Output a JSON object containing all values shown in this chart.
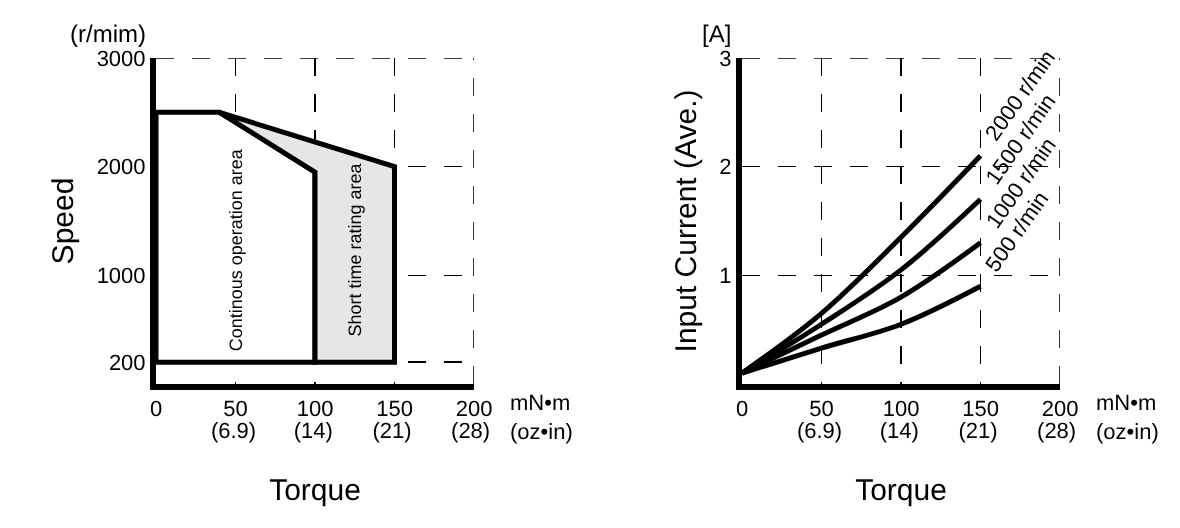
{
  "chart_data": [
    {
      "type": "area",
      "xlabel": "Torque",
      "ylabel": "Speed",
      "xlim": [
        0,
        200
      ],
      "ylim": [
        0,
        3000
      ],
      "xticks": [
        0,
        50,
        100,
        150,
        200
      ],
      "x2lim": [
        0,
        28.3
      ],
      "x2ticks": [
        {
          "value": 6.9,
          "label": "(6.9)"
        },
        {
          "value": 14,
          "label": "(14)"
        },
        {
          "value": 21,
          "label": "(21)"
        },
        {
          "value": 28,
          "label": "(28)"
        }
      ],
      "yticks": [
        200,
        1000,
        2000,
        3000
      ],
      "grid": true,
      "series": [
        {
          "x": [
            0,
            0,
            40,
            100,
            100,
            0
          ],
          "values": [
            200,
            2500,
            2500,
            1950,
            200,
            200
          ],
          "color": "#ffffff"
        },
        {
          "x": [
            40,
            150,
            150,
            100,
            100,
            40
          ],
          "values": [
            2500,
            2000,
            200,
            200,
            1950,
            2500
          ],
          "color": "#e6e6e6"
        }
      ],
      "annotations": [
        "(r/mim)",
        "mN•m\n(oz•in)",
        "Continous operation area",
        "Short time rating area"
      ]
    },
    {
      "type": "line",
      "xlabel": "Torque",
      "ylabel": "Input Current (Ave.)",
      "xlim": [
        0,
        200
      ],
      "ylim": [
        0,
        3
      ],
      "xticks": [
        0,
        50,
        100,
        150,
        200
      ],
      "x2lim": [
        0,
        28.3
      ],
      "x2ticks": [
        {
          "value": 6.9,
          "label": "(6.9)"
        },
        {
          "value": 14,
          "label": "(14)"
        },
        {
          "value": 21,
          "label": "(21)"
        },
        {
          "value": 28,
          "label": "(28)"
        }
      ],
      "yticks": [
        1,
        2,
        3
      ],
      "grid": true,
      "marker": "none",
      "series": [
        {
          "name": "2000 r/min",
          "color": "#000000",
          "x": [
            0,
            50,
            100,
            150
          ],
          "values": [
            0.1,
            0.65,
            1.35,
            2.1
          ]
        },
        {
          "name": "1500 r/min",
          "color": "#000000",
          "x": [
            0,
            50,
            100,
            150
          ],
          "values": [
            0.1,
            0.55,
            1.05,
            1.7
          ]
        },
        {
          "name": "1000 r/min",
          "color": "#000000",
          "x": [
            0,
            50,
            100,
            150
          ],
          "values": [
            0.1,
            0.45,
            0.8,
            1.3
          ]
        },
        {
          "name": "500 r/min",
          "color": "#000000",
          "x": [
            0,
            50,
            100,
            150
          ],
          "values": [
            0.1,
            0.33,
            0.55,
            0.9
          ]
        }
      ],
      "annotations": [
        "[A]",
        "mN•m\n(oz•in)"
      ]
    }
  ]
}
